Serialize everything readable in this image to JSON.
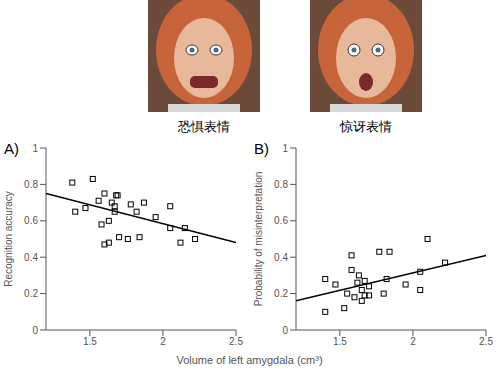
{
  "photos": [
    {
      "label": "恐惧表情"
    },
    {
      "label": "惊讶表情"
    }
  ],
  "shared_x_label": "Volume of left amygdala (cm³)",
  "chart_data": [
    {
      "type": "scatter",
      "panel": "A)",
      "y_label": "Recognition accuracy",
      "xlim": [
        1.2,
        2.5
      ],
      "xticks": [
        1.5,
        2,
        2.5
      ],
      "ylim": [
        0,
        1
      ],
      "yticks": [
        0,
        0.2,
        0.4,
        0.6,
        0.8,
        1
      ],
      "grid": false,
      "series": [
        {
          "type": "scatter",
          "marker": "square",
          "color": "#000000",
          "x": [
            1.38,
            1.4,
            1.47,
            1.52,
            1.56,
            1.58,
            1.6,
            1.6,
            1.63,
            1.63,
            1.65,
            1.67,
            1.67,
            1.68,
            1.69,
            1.7,
            1.76,
            1.78,
            1.82,
            1.84,
            1.87,
            1.95,
            2.05,
            2.05,
            2.12,
            2.15,
            2.22
          ],
          "values": [
            0.81,
            0.65,
            0.67,
            0.83,
            0.71,
            0.58,
            0.75,
            0.47,
            0.48,
            0.6,
            0.7,
            0.68,
            0.65,
            0.74,
            0.74,
            0.51,
            0.5,
            0.69,
            0.65,
            0.51,
            0.7,
            0.62,
            0.68,
            0.56,
            0.48,
            0.56,
            0.5
          ]
        },
        {
          "type": "line",
          "line_style": "solid",
          "color": "#000000",
          "x": [
            1.2,
            2.5
          ],
          "values": [
            0.75,
            0.48
          ]
        }
      ]
    },
    {
      "type": "scatter",
      "panel": "B)",
      "y_label": "Probability of misinterpretation",
      "xlim": [
        1.2,
        2.5
      ],
      "xticks": [
        1.5,
        2,
        2.5
      ],
      "ylim": [
        0,
        1
      ],
      "yticks": [
        0,
        0.2,
        0.4,
        0.6,
        0.8,
        1
      ],
      "grid": false,
      "series": [
        {
          "type": "scatter",
          "marker": "square",
          "color": "#000000",
          "x": [
            1.4,
            1.4,
            1.47,
            1.53,
            1.55,
            1.58,
            1.58,
            1.6,
            1.62,
            1.63,
            1.65,
            1.65,
            1.67,
            1.67,
            1.7,
            1.7,
            1.77,
            1.8,
            1.82,
            1.84,
            1.95,
            2.05,
            2.05,
            2.1,
            2.22
          ],
          "values": [
            0.28,
            0.1,
            0.25,
            0.12,
            0.2,
            0.41,
            0.33,
            0.18,
            0.26,
            0.3,
            0.22,
            0.16,
            0.27,
            0.19,
            0.24,
            0.19,
            0.43,
            0.2,
            0.28,
            0.43,
            0.25,
            0.32,
            0.22,
            0.5,
            0.37
          ]
        },
        {
          "type": "line",
          "line_style": "solid",
          "color": "#000000",
          "x": [
            1.2,
            2.5
          ],
          "values": [
            0.16,
            0.41
          ]
        }
      ]
    }
  ]
}
